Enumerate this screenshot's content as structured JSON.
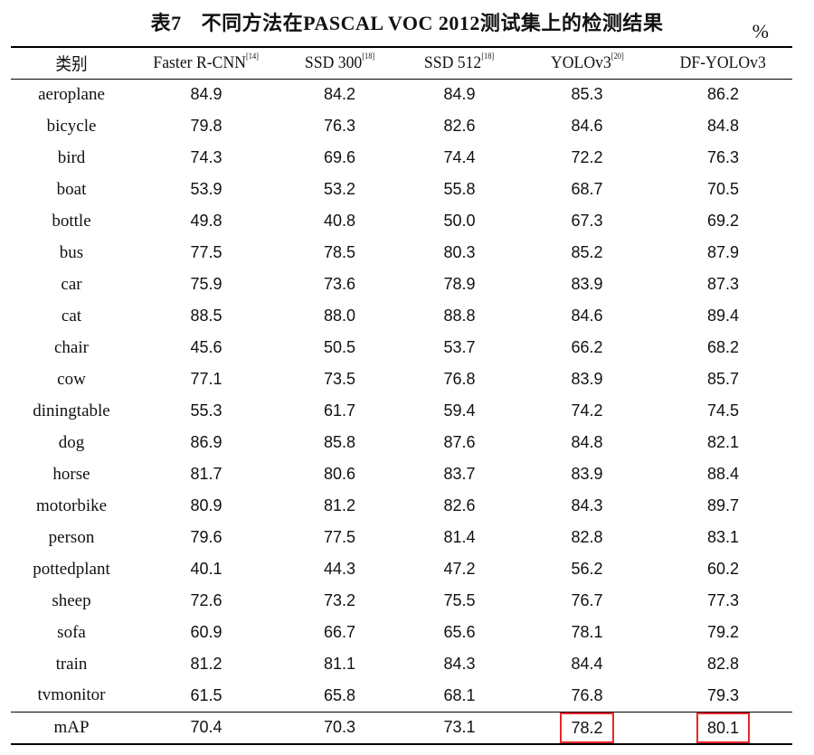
{
  "caption": {
    "number": "表7",
    "title": "不同方法在PASCAL VOC 2012测试集上的检测结果"
  },
  "unit": "%",
  "columns": [
    {
      "label": "类别",
      "ref": ""
    },
    {
      "label": "Faster R-CNN",
      "ref": "[14]"
    },
    {
      "label": "SSD 300",
      "ref": "[18]"
    },
    {
      "label": "SSD 512",
      "ref": "[18]"
    },
    {
      "label": "YOLOv3",
      "ref": "[20]"
    },
    {
      "label": "DF-YOLOv3",
      "ref": ""
    }
  ],
  "rows": [
    {
      "class": "aeroplane",
      "values": [
        "84.9",
        "84.2",
        "84.9",
        "85.3",
        "86.2"
      ]
    },
    {
      "class": "bicycle",
      "values": [
        "79.8",
        "76.3",
        "82.6",
        "84.6",
        "84.8"
      ]
    },
    {
      "class": "bird",
      "values": [
        "74.3",
        "69.6",
        "74.4",
        "72.2",
        "76.3"
      ]
    },
    {
      "class": "boat",
      "values": [
        "53.9",
        "53.2",
        "55.8",
        "68.7",
        "70.5"
      ]
    },
    {
      "class": "bottle",
      "values": [
        "49.8",
        "40.8",
        "50.0",
        "67.3",
        "69.2"
      ]
    },
    {
      "class": "bus",
      "values": [
        "77.5",
        "78.5",
        "80.3",
        "85.2",
        "87.9"
      ]
    },
    {
      "class": "car",
      "values": [
        "75.9",
        "73.6",
        "78.9",
        "83.9",
        "87.3"
      ]
    },
    {
      "class": "cat",
      "values": [
        "88.5",
        "88.0",
        "88.8",
        "84.6",
        "89.4"
      ]
    },
    {
      "class": "chair",
      "values": [
        "45.6",
        "50.5",
        "53.7",
        "66.2",
        "68.2"
      ]
    },
    {
      "class": "cow",
      "values": [
        "77.1",
        "73.5",
        "76.8",
        "83.9",
        "85.7"
      ]
    },
    {
      "class": "diningtable",
      "values": [
        "55.3",
        "61.7",
        "59.4",
        "74.2",
        "74.5"
      ]
    },
    {
      "class": "dog",
      "values": [
        "86.9",
        "85.8",
        "87.6",
        "84.8",
        "82.1"
      ]
    },
    {
      "class": "horse",
      "values": [
        "81.7",
        "80.6",
        "83.7",
        "83.9",
        "88.4"
      ]
    },
    {
      "class": "motorbike",
      "values": [
        "80.9",
        "81.2",
        "82.6",
        "84.3",
        "89.7"
      ]
    },
    {
      "class": "person",
      "values": [
        "79.6",
        "77.5",
        "81.4",
        "82.8",
        "83.1"
      ]
    },
    {
      "class": "pottedplant",
      "values": [
        "40.1",
        "44.3",
        "47.2",
        "56.2",
        "60.2"
      ]
    },
    {
      "class": "sheep",
      "values": [
        "72.6",
        "73.2",
        "75.5",
        "76.7",
        "77.3"
      ]
    },
    {
      "class": "sofa",
      "values": [
        "60.9",
        "66.7",
        "65.6",
        "78.1",
        "79.2"
      ]
    },
    {
      "class": "train",
      "values": [
        "81.2",
        "81.1",
        "84.3",
        "84.4",
        "82.8"
      ]
    },
    {
      "class": "tvmonitor",
      "values": [
        "61.5",
        "65.8",
        "68.1",
        "76.8",
        "79.3"
      ]
    }
  ],
  "summary": {
    "class": "mAP",
    "values": [
      "70.4",
      "70.3",
      "73.1",
      "78.2",
      "80.1"
    ]
  },
  "highlight": {
    "color": "#e8262b",
    "columns": [
      3,
      4
    ]
  }
}
